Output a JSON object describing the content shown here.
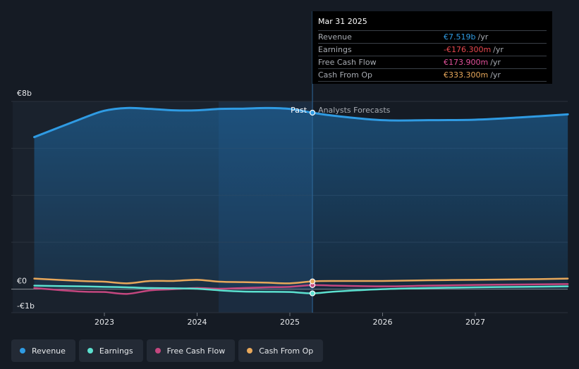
{
  "chart_data": {
    "type": "line",
    "x_axis": {
      "ticks": [
        "2023",
        "2024",
        "2025",
        "2026",
        "2027"
      ]
    },
    "y_axis": {
      "labels": [
        "€8b",
        "€0",
        "-€1b"
      ],
      "ylim": [
        -1,
        8
      ],
      "unit": "b EUR"
    },
    "divider": {
      "date": "2025-03-31",
      "left_label": "Past",
      "right_label": "Analysts Forecasts"
    },
    "series": [
      {
        "name": "Revenue",
        "color": "#2f9be3",
        "x": [
          "2022-03-31",
          "2022-09-30",
          "2022-12-31",
          "2023-03-31",
          "2023-06-30",
          "2023-09-30",
          "2023-12-31",
          "2024-03-31",
          "2024-06-30",
          "2024-09-30",
          "2024-12-31",
          "2025-03-31",
          "2025-06-30",
          "2025-12-31",
          "2026-06-30",
          "2026-12-31",
          "2027-06-30",
          "2027-12-31"
        ],
        "values": [
          6.48,
          7.25,
          7.6,
          7.72,
          7.68,
          7.62,
          7.62,
          7.68,
          7.69,
          7.72,
          7.68,
          7.519,
          7.38,
          7.2,
          7.2,
          7.22,
          7.32,
          7.45
        ]
      },
      {
        "name": "Earnings",
        "color": "#5ce0cf",
        "x": [
          "2022-03-31",
          "2022-09-30",
          "2022-12-31",
          "2023-03-31",
          "2023-06-30",
          "2023-09-30",
          "2023-12-31",
          "2024-03-31",
          "2024-06-30",
          "2024-09-30",
          "2024-12-31",
          "2025-03-31",
          "2025-06-30",
          "2025-12-31",
          "2026-06-30",
          "2026-12-31",
          "2027-06-30",
          "2027-12-31"
        ],
        "values": [
          0.15,
          0.12,
          0.1,
          0.08,
          0.05,
          0.04,
          0.02,
          -0.05,
          -0.1,
          -0.11,
          -0.12,
          -0.1763,
          -0.1,
          0.0,
          0.05,
          0.08,
          0.1,
          0.12
        ]
      },
      {
        "name": "Free Cash Flow",
        "color": "#c4477f",
        "x": [
          "2022-03-31",
          "2022-09-30",
          "2022-12-31",
          "2023-03-31",
          "2023-06-30",
          "2023-09-30",
          "2023-12-31",
          "2024-03-31",
          "2024-06-30",
          "2024-09-30",
          "2024-12-31",
          "2025-03-31",
          "2025-06-30",
          "2025-12-31",
          "2026-06-30",
          "2026-12-31",
          "2027-06-30",
          "2027-12-31"
        ],
        "values": [
          0.05,
          -0.1,
          -0.12,
          -0.2,
          -0.05,
          0.0,
          0.05,
          0.02,
          0.05,
          0.08,
          0.1,
          0.1739,
          0.15,
          0.12,
          0.15,
          0.18,
          0.2,
          0.22
        ]
      },
      {
        "name": "Cash From Op",
        "color": "#e8a85b",
        "x": [
          "2022-03-31",
          "2022-09-30",
          "2022-12-31",
          "2023-03-31",
          "2023-06-30",
          "2023-09-30",
          "2023-12-31",
          "2024-03-31",
          "2024-06-30",
          "2024-09-30",
          "2024-12-31",
          "2025-03-31",
          "2025-06-30",
          "2025-12-31",
          "2026-06-30",
          "2026-12-31",
          "2027-06-30",
          "2027-12-31"
        ],
        "values": [
          0.45,
          0.35,
          0.32,
          0.25,
          0.35,
          0.35,
          0.4,
          0.32,
          0.3,
          0.28,
          0.25,
          0.3333,
          0.35,
          0.35,
          0.38,
          0.4,
          0.42,
          0.45
        ]
      }
    ]
  },
  "tooltip": {
    "date": "Mar 31 2025",
    "rows": [
      {
        "label": "Revenue",
        "value": "€7.519b",
        "unit": "/yr",
        "color": "#2f9be3"
      },
      {
        "label": "Earnings",
        "value": "-€176.300m",
        "unit": "/yr",
        "color": "#e8484f"
      },
      {
        "label": "Free Cash Flow",
        "value": "€173.900m",
        "unit": "/yr",
        "color": "#e0509a"
      },
      {
        "label": "Cash From Op",
        "value": "€333.300m",
        "unit": "/yr",
        "color": "#e8a85b"
      }
    ]
  },
  "legend": [
    {
      "label": "Revenue",
      "color": "#2f9be3"
    },
    {
      "label": "Earnings",
      "color": "#5ce0cf"
    },
    {
      "label": "Free Cash Flow",
      "color": "#c4477f"
    },
    {
      "label": "Cash From Op",
      "color": "#e8a85b"
    }
  ]
}
